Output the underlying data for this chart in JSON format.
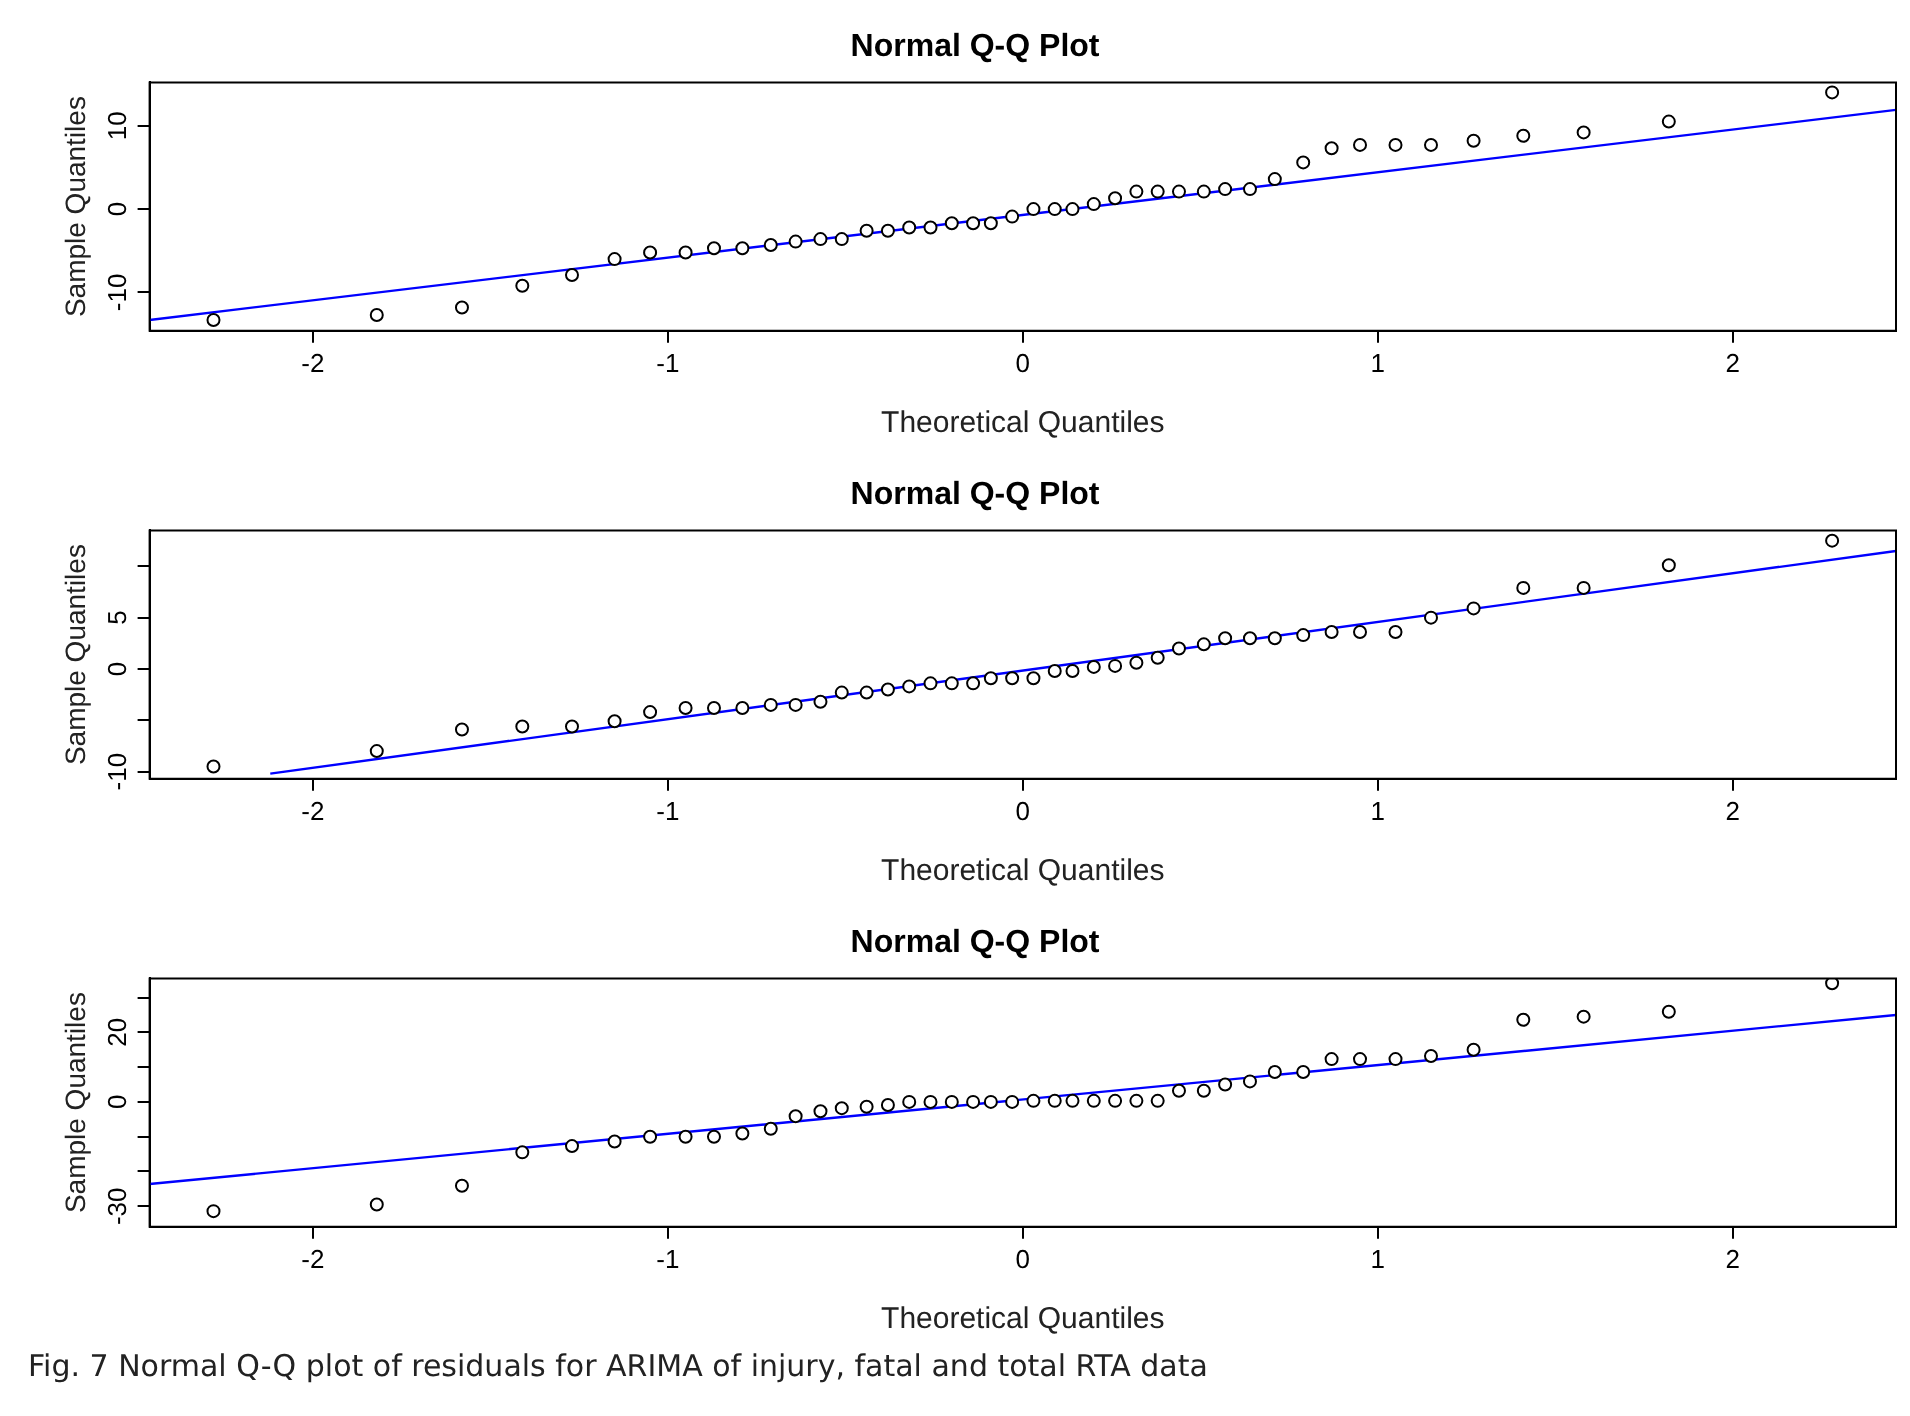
{
  "chart_data": [
    {
      "type": "scatter",
      "title": "Normal Q-Q Plot",
      "xlabel": "Theoretical Quantiles",
      "ylabel": "Sample Quantiles",
      "marker": "circle",
      "legend": false,
      "xlim": [
        -2.46,
        2.46
      ],
      "xticks": [
        -2,
        -1,
        0,
        1,
        2
      ],
      "ylim": [
        -14.6,
        15.2
      ],
      "yticks": [
        -10,
        0,
        10
      ],
      "series": [
        {
          "color": "#000000",
          "x": [
            -2.28,
            -1.82,
            -1.58,
            -1.41,
            -1.27,
            -1.15,
            -1.05,
            -0.95,
            -0.87,
            -0.79,
            -0.71,
            -0.64,
            -0.57,
            -0.51,
            -0.44,
            -0.38,
            -0.32,
            -0.26,
            -0.2,
            -0.14,
            -0.09,
            -0.03,
            0.03,
            0.09,
            0.14,
            0.2,
            0.26,
            0.32,
            0.38,
            0.44,
            0.51,
            0.57,
            0.64,
            0.71,
            0.79,
            0.87,
            0.95,
            1.05,
            1.15,
            1.27,
            1.41,
            1.58,
            1.82,
            2.28
          ],
          "values": [
            -13.3,
            -12.7,
            -11.8,
            -9.2,
            -7.9,
            -6.0,
            -5.2,
            -5.2,
            -4.7,
            -4.7,
            -4.3,
            -3.9,
            -3.6,
            -3.6,
            -2.6,
            -2.6,
            -2.2,
            -2.2,
            -1.7,
            -1.7,
            -1.7,
            -0.9,
            0,
            0,
            0,
            0.6,
            1.3,
            2.1,
            2.1,
            2.1,
            2.1,
            2.4,
            2.4,
            3.6,
            5.6,
            7.3,
            7.7,
            7.7,
            7.7,
            8.2,
            8.8,
            9.2,
            10.5,
            14.0
          ]
        },
        {
          "type": "line",
          "color": "#0000ff",
          "marker": "none",
          "line_style": "solid",
          "x": [
            -2.46,
            2.46
          ],
          "values": [
            -13.3,
            11.9
          ]
        }
      ]
    },
    {
      "type": "scatter",
      "title": "Normal Q-Q Plot",
      "xlabel": "Theoretical Quantiles",
      "ylabel": "Sample Quantiles",
      "marker": "circle",
      "legend": false,
      "xlim": [
        -2.46,
        2.46
      ],
      "xticks": [
        -2,
        -1,
        0,
        1,
        2
      ],
      "ylim": [
        -10.7,
        13.5
      ],
      "yticks": [
        -10,
        {
          "value": -5,
          "label": null
        },
        0,
        5,
        {
          "value": 10,
          "label": null
        }
      ],
      "series": [
        {
          "color": "#000000",
          "x": [
            -2.28,
            -1.82,
            -1.58,
            -1.41,
            -1.27,
            -1.15,
            -1.05,
            -0.95,
            -0.87,
            -0.79,
            -0.71,
            -0.64,
            -0.57,
            -0.51,
            -0.44,
            -0.38,
            -0.32,
            -0.26,
            -0.2,
            -0.14,
            -0.09,
            -0.03,
            0.03,
            0.09,
            0.14,
            0.2,
            0.26,
            0.32,
            0.38,
            0.44,
            0.51,
            0.57,
            0.64,
            0.71,
            0.79,
            0.87,
            0.95,
            1.05,
            1.15,
            1.27,
            1.41,
            1.58,
            1.82,
            2.28
          ],
          "values": [
            -9.5,
            -8.0,
            -5.9,
            -5.6,
            -5.6,
            -5.1,
            -4.2,
            -3.8,
            -3.8,
            -3.8,
            -3.5,
            -3.5,
            -3.2,
            -2.3,
            -2.3,
            -2.0,
            -1.7,
            -1.4,
            -1.4,
            -1.4,
            -0.9,
            -0.9,
            -0.9,
            -0.2,
            -0.2,
            0.2,
            0.3,
            0.6,
            1.1,
            2.0,
            2.4,
            3.0,
            3.0,
            3.0,
            3.3,
            3.6,
            3.6,
            3.6,
            5.0,
            5.9,
            7.9,
            7.9,
            10.1,
            12.5
          ]
        },
        {
          "type": "line",
          "color": "#0000ff",
          "marker": "none",
          "line_style": "solid",
          "x": [
            -2.12,
            2.46
          ],
          "values": [
            -10.2,
            11.5
          ]
        }
      ]
    },
    {
      "type": "scatter",
      "title": "Normal Q-Q Plot",
      "xlabel": "Theoretical Quantiles",
      "ylabel": "Sample Quantiles",
      "marker": "circle",
      "legend": false,
      "xlim": [
        -2.46,
        2.46
      ],
      "xticks": [
        -2,
        -1,
        0,
        1,
        2
      ],
      "ylim": [
        -35.9,
        35.5
      ],
      "yticks": [
        -30,
        {
          "value": -20,
          "label": null
        },
        {
          "value": -10,
          "label": null
        },
        0,
        {
          "value": 10,
          "label": null
        },
        20,
        {
          "value": 30,
          "label": null
        }
      ],
      "annotations": [
        "Fig. 7  Normal Q-Q plot of residuals for ARIMA of injury, fatal and total RTA data"
      ],
      "series": [
        {
          "color": "#000000",
          "x": [
            -2.28,
            -1.82,
            -1.58,
            -1.41,
            -1.27,
            -1.15,
            -1.05,
            -0.95,
            -0.87,
            -0.79,
            -0.71,
            -0.64,
            -0.57,
            -0.51,
            -0.44,
            -0.38,
            -0.32,
            -0.26,
            -0.2,
            -0.14,
            -0.09,
            -0.03,
            0.03,
            0.09,
            0.14,
            0.2,
            0.26,
            0.32,
            0.38,
            0.44,
            0.51,
            0.57,
            0.64,
            0.71,
            0.79,
            0.87,
            0.95,
            1.05,
            1.15,
            1.27,
            1.41,
            1.58,
            1.82,
            2.28
          ],
          "values": [
            -31.4,
            -29.5,
            -24.1,
            -14.5,
            -12.7,
            -11.4,
            -10.0,
            -10.0,
            -10.0,
            -9.1,
            -7.7,
            -4.1,
            -2.7,
            -1.8,
            -1.4,
            -0.9,
            0,
            0,
            0,
            0,
            0,
            0,
            0.3,
            0.3,
            0.3,
            0.3,
            0.3,
            0.3,
            0.3,
            3.2,
            3.2,
            5.0,
            5.9,
            8.6,
            8.6,
            12.3,
            12.3,
            12.3,
            13.2,
            15.0,
            23.6,
            24.5,
            25.9,
            34.1
          ]
        },
        {
          "type": "line",
          "color": "#0000ff",
          "marker": "none",
          "line_style": "solid",
          "x": [
            -2.46,
            2.46
          ],
          "values": [
            -23.6,
            25.0
          ]
        }
      ]
    }
  ]
}
